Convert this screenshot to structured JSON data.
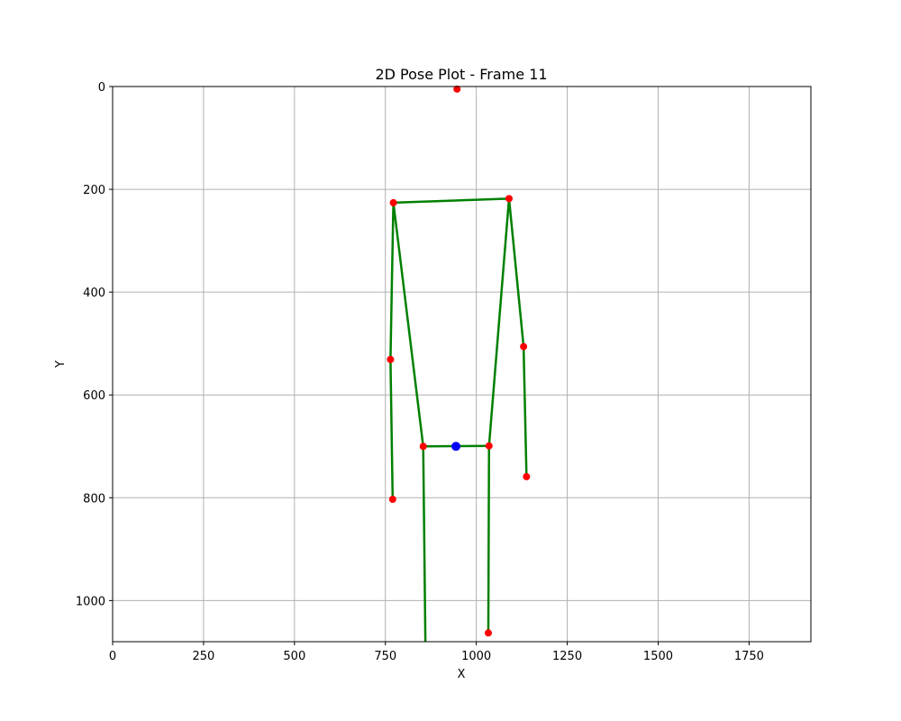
{
  "chart_data": {
    "type": "scatter",
    "title": "2D Pose Plot - Frame 11",
    "xlabel": "X",
    "ylabel": "Y",
    "xlim": [
      0,
      1920
    ],
    "ylim": [
      1080,
      0
    ],
    "y_inverted": true,
    "grid": true,
    "x_ticks": [
      0,
      250,
      500,
      750,
      1000,
      1250,
      1500,
      1750
    ],
    "y_ticks": [
      0,
      200,
      400,
      600,
      800,
      1000
    ],
    "bone_color": "#008000",
    "joint_color": "#ff0000",
    "center_color": "#0000ff",
    "joints": [
      {
        "x": 947,
        "y": 5
      },
      {
        "x": 772,
        "y": 226
      },
      {
        "x": 1090,
        "y": 218
      },
      {
        "x": 764,
        "y": 531
      },
      {
        "x": 1130,
        "y": 506
      },
      {
        "x": 770,
        "y": 803
      },
      {
        "x": 1138,
        "y": 759
      },
      {
        "x": 854,
        "y": 700
      },
      {
        "x": 1035,
        "y": 699
      },
      {
        "x": 1033,
        "y": 1063
      }
    ],
    "center": {
      "x": 944,
      "y": 700
    },
    "bones": [
      [
        {
          "x": 772,
          "y": 226
        },
        {
          "x": 1090,
          "y": 218
        }
      ],
      [
        {
          "x": 772,
          "y": 226
        },
        {
          "x": 764,
          "y": 531
        }
      ],
      [
        {
          "x": 764,
          "y": 531
        },
        {
          "x": 770,
          "y": 803
        }
      ],
      [
        {
          "x": 1090,
          "y": 218
        },
        {
          "x": 1130,
          "y": 506
        }
      ],
      [
        {
          "x": 1130,
          "y": 506
        },
        {
          "x": 1138,
          "y": 759
        }
      ],
      [
        {
          "x": 772,
          "y": 226
        },
        {
          "x": 854,
          "y": 700
        }
      ],
      [
        {
          "x": 1090,
          "y": 218
        },
        {
          "x": 1035,
          "y": 699
        }
      ],
      [
        {
          "x": 854,
          "y": 700
        },
        {
          "x": 1035,
          "y": 699
        }
      ],
      [
        {
          "x": 854,
          "y": 700
        },
        {
          "x": 860,
          "y": 1080
        }
      ],
      [
        {
          "x": 1035,
          "y": 699
        },
        {
          "x": 1033,
          "y": 1063
        }
      ]
    ]
  }
}
